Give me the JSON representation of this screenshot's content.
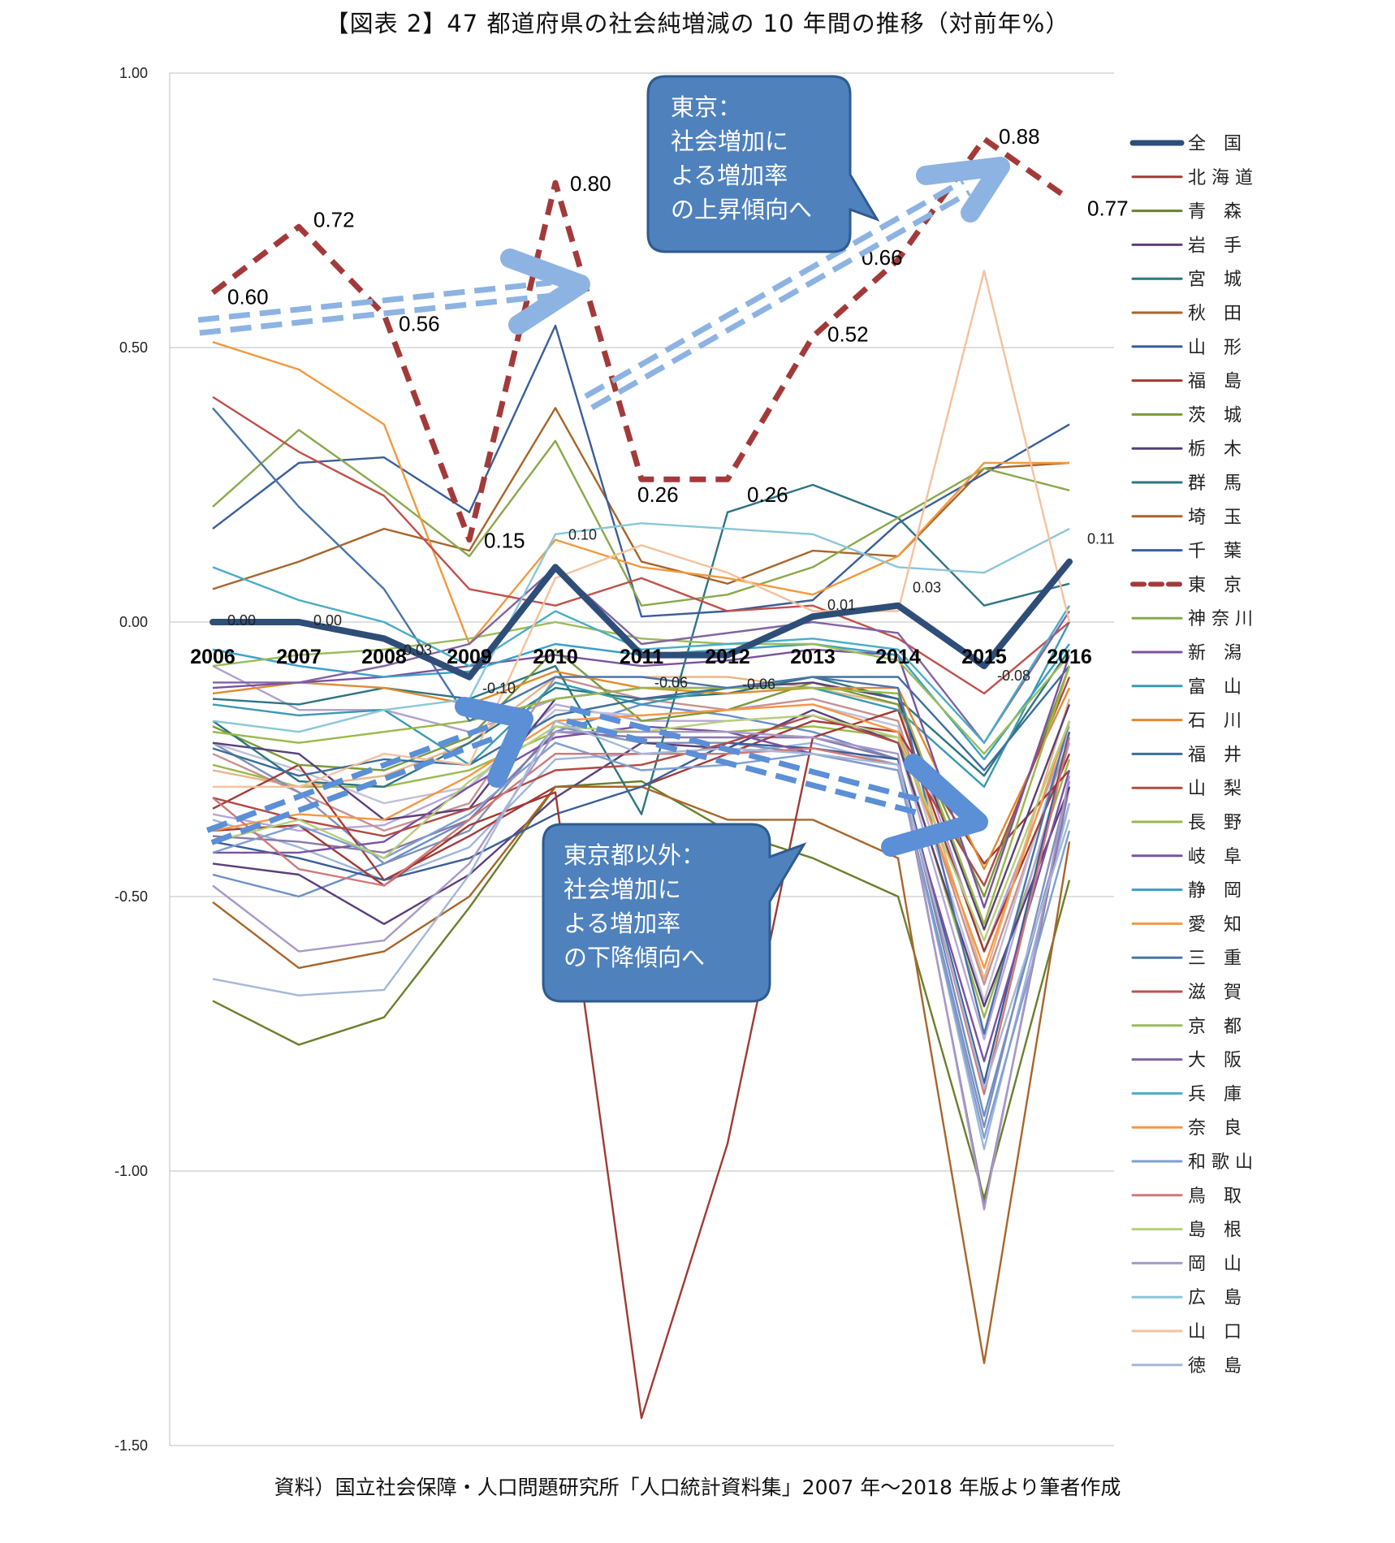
{
  "title": "【図表 2】47 都道府県の社会純増減の 10 年間の推移（対前年%）",
  "source": "資料）国立社会保障・人口問題研究所「人口統計資料集」2007 年～2018 年版より筆者作成",
  "callouts": {
    "tokyo": [
      "東京：",
      "社会増加に",
      "よる増加率",
      "の上昇傾向へ"
    ],
    "others": [
      "東京都以外：",
      "社会増加に",
      "よる増加率",
      "の下降傾向へ"
    ]
  },
  "colors": {
    "national": "#2e4e78",
    "tokyo": "#a33a3a",
    "callout_fill": "#4f81bd",
    "callout_stroke": "#2f5b8f",
    "arrow": "#8db3e2",
    "arrow_dark": "#5b8fd6"
  },
  "chart_data": {
    "type": "line",
    "title": "47 都道府県の社会純増減の 10 年間の推移（対前年%）",
    "categories": [
      "2006",
      "2007",
      "2008",
      "2009",
      "2010",
      "2011",
      "2012",
      "2013",
      "2014",
      "2015",
      "2016"
    ],
    "ylim": [
      -1.5,
      1.0
    ],
    "yticks": [
      "1.00",
      "0.50",
      "0.00",
      "-0.50",
      "-1.00",
      "-1.50"
    ],
    "ytick_values": [
      1.0,
      0.5,
      0.0,
      -0.5,
      -1.0,
      -1.5
    ],
    "gridlines": true,
    "legend_position": "right",
    "highlighted": {
      "national": {
        "name": "全　国",
        "values": [
          0.0,
          0.0,
          -0.03,
          -0.1,
          0.1,
          -0.06,
          -0.06,
          0.01,
          0.03,
          -0.08,
          0.11
        ],
        "labels": [
          "0.00",
          "0.00",
          "-0.03",
          "-0.10",
          "0.10",
          "-0.06",
          "-0.06",
          "0.01",
          "0.03",
          "-0.08",
          "0.11"
        ]
      },
      "tokyo": {
        "name": "東　京",
        "values": [
          0.6,
          0.72,
          0.56,
          0.15,
          0.8,
          0.26,
          0.26,
          0.52,
          0.66,
          0.88,
          0.77
        ],
        "labels": [
          "0.60",
          "0.72",
          "0.56",
          "0.15",
          "0.80",
          "0.26",
          "0.26",
          "0.52",
          "0.66",
          "0.88",
          "0.77"
        ]
      }
    },
    "series": [
      {
        "name": "北 海 道",
        "values": [
          -0.34,
          -0.26,
          -0.47,
          -0.39,
          -0.3,
          -0.3,
          -0.24,
          -0.18,
          -0.2,
          -0.44,
          -0.27
        ],
        "color": "#a33a3a"
      },
      {
        "name": "青　森",
        "values": [
          -0.69,
          -0.77,
          -0.72,
          -0.52,
          -0.3,
          -0.29,
          -0.38,
          -0.43,
          -0.5,
          -1.05,
          -0.47
        ],
        "color": "#6b7f2a"
      },
      {
        "name": "岩　手",
        "values": [
          -0.44,
          -0.46,
          -0.55,
          -0.46,
          -0.32,
          -0.22,
          -0.23,
          -0.16,
          -0.22,
          -0.7,
          -0.3
        ],
        "color": "#5a3f7a"
      },
      {
        "name": "宮　城",
        "values": [
          -0.14,
          -0.15,
          -0.12,
          -0.14,
          -0.08,
          -0.35,
          0.2,
          0.25,
          0.19,
          0.03,
          0.07
        ],
        "color": "#2d7582"
      },
      {
        "name": "秋　田",
        "values": [
          -0.51,
          -0.63,
          -0.6,
          -0.5,
          -0.3,
          -0.3,
          -0.36,
          -0.36,
          -0.43,
          -1.35,
          -0.4
        ],
        "color": "#a8652a"
      },
      {
        "name": "山　形",
        "values": [
          -0.4,
          -0.43,
          -0.47,
          -0.43,
          -0.35,
          -0.3,
          -0.22,
          -0.23,
          -0.25,
          -0.84,
          -0.2
        ],
        "color": "#3b5e98"
      },
      {
        "name": "福　島",
        "values": [
          -0.38,
          -0.37,
          -0.48,
          -0.37,
          -0.31,
          -1.45,
          -0.95,
          -0.21,
          -0.16,
          -0.6,
          -0.24
        ],
        "color": "#a03a32"
      },
      {
        "name": "茨　城",
        "values": [
          -0.19,
          -0.26,
          -0.27,
          -0.21,
          -0.05,
          -0.18,
          -0.16,
          -0.11,
          -0.15,
          -0.5,
          -0.08
        ],
        "color": "#7b9a3a"
      },
      {
        "name": "栃　木",
        "values": [
          -0.22,
          -0.24,
          -0.36,
          -0.34,
          -0.14,
          -0.12,
          -0.12,
          -0.11,
          -0.14,
          -0.56,
          -0.15
        ],
        "color": "#5a3f7a"
      },
      {
        "name": "群　馬",
        "values": [
          -0.18,
          -0.29,
          -0.3,
          -0.22,
          -0.12,
          -0.14,
          -0.13,
          -0.1,
          -0.14,
          -0.28,
          -0.05
        ],
        "color": "#2d7582"
      },
      {
        "name": "埼　玉",
        "values": [
          0.06,
          0.11,
          0.17,
          0.13,
          0.39,
          0.11,
          0.07,
          0.13,
          0.12,
          0.28,
          0.29
        ],
        "color": "#a8652a"
      },
      {
        "name": "千　葉",
        "values": [
          0.17,
          0.29,
          0.3,
          0.2,
          0.54,
          0.01,
          0.02,
          0.04,
          0.18,
          0.27,
          0.36
        ],
        "color": "#3b5e98"
      },
      {
        "name": "神 奈 川",
        "values": [
          0.21,
          0.35,
          0.24,
          0.12,
          0.33,
          0.03,
          0.05,
          0.1,
          0.19,
          0.28,
          0.24
        ],
        "color": "#8aa84a"
      },
      {
        "name": "新　潟",
        "values": [
          -0.42,
          -0.42,
          -0.4,
          -0.3,
          -0.21,
          -0.19,
          -0.2,
          -0.24,
          -0.27,
          -0.8,
          -0.27
        ],
        "color": "#7a52a0"
      },
      {
        "name": "富　山",
        "values": [
          -0.15,
          -0.17,
          -0.16,
          -0.26,
          -0.11,
          -0.15,
          -0.12,
          -0.12,
          -0.16,
          -0.3,
          0.0
        ],
        "color": "#3a9ab0"
      },
      {
        "name": "石　川",
        "values": [
          -0.13,
          -0.11,
          -0.12,
          -0.15,
          -0.09,
          -0.12,
          -0.13,
          -0.12,
          -0.12,
          -0.45,
          -0.12
        ],
        "color": "#e08a2e"
      },
      {
        "name": "福　井",
        "values": [
          -0.23,
          -0.28,
          -0.25,
          -0.26,
          -0.17,
          -0.14,
          -0.12,
          -0.1,
          -0.1,
          -0.27,
          -0.08
        ],
        "color": "#3b6e9a"
      },
      {
        "name": "山　梨",
        "values": [
          -0.32,
          -0.36,
          -0.39,
          -0.34,
          -0.27,
          -0.26,
          -0.22,
          -0.17,
          -0.22,
          -0.48,
          -0.1
        ],
        "color": "#b04a46"
      },
      {
        "name": "長　野",
        "values": [
          -0.2,
          -0.22,
          -0.2,
          -0.18,
          -0.14,
          -0.12,
          -0.12,
          -0.12,
          -0.13,
          -0.55,
          -0.08
        ],
        "color": "#9ab84a"
      },
      {
        "name": "岐　阜",
        "values": [
          -0.12,
          -0.11,
          -0.1,
          -0.08,
          -0.06,
          -0.08,
          -0.07,
          -0.05,
          -0.06,
          -0.52,
          -0.06
        ],
        "color": "#7a52a0"
      },
      {
        "name": "静　岡",
        "values": [
          -0.05,
          -0.08,
          -0.1,
          -0.09,
          -0.04,
          -0.06,
          -0.05,
          -0.04,
          -0.06,
          -0.25,
          -0.04
        ],
        "color": "#3aa0c8"
      },
      {
        "name": "愛　知",
        "values": [
          0.51,
          0.46,
          0.36,
          -0.04,
          0.15,
          0.1,
          0.08,
          0.05,
          0.12,
          0.29,
          0.29
        ],
        "color": "#f09a3e"
      },
      {
        "name": "三　重",
        "values": [
          0.39,
          0.21,
          0.06,
          -0.18,
          -0.1,
          -0.1,
          -0.12,
          -0.1,
          -0.12,
          -0.75,
          -0.18
        ],
        "color": "#4a74aa"
      },
      {
        "name": "滋　賀",
        "values": [
          0.41,
          0.31,
          0.23,
          0.06,
          0.03,
          0.08,
          0.02,
          0.03,
          -0.03,
          -0.13,
          0.0
        ],
        "color": "#c0504d"
      },
      {
        "name": "京　都",
        "values": [
          -0.08,
          -0.06,
          -0.05,
          -0.03,
          0.0,
          -0.03,
          -0.04,
          -0.04,
          -0.07,
          -0.24,
          -0.06
        ],
        "color": "#9bbb59"
      },
      {
        "name": "大　阪",
        "values": [
          -0.11,
          -0.11,
          -0.08,
          -0.04,
          0.1,
          -0.04,
          -0.02,
          0.0,
          -0.02,
          -0.22,
          0.02
        ],
        "color": "#8064a2"
      },
      {
        "name": "兵　庫",
        "values": [
          0.1,
          0.04,
          0.0,
          -0.08,
          0.02,
          -0.05,
          -0.04,
          -0.03,
          -0.05,
          -0.22,
          0.03
        ],
        "color": "#4bacc6"
      },
      {
        "name": "奈　良",
        "values": [
          -0.38,
          -0.35,
          -0.36,
          -0.28,
          -0.18,
          -0.17,
          -0.16,
          -0.15,
          -0.2,
          -0.63,
          -0.18
        ],
        "color": "#f79646"
      },
      {
        "name": "和 歌 山",
        "values": [
          -0.42,
          -0.37,
          -0.43,
          -0.35,
          -0.22,
          -0.27,
          -0.26,
          -0.24,
          -0.27,
          -0.94,
          -0.38
        ],
        "color": "#7f9fd0"
      },
      {
        "name": "鳥　取",
        "values": [
          -0.32,
          -0.45,
          -0.48,
          -0.36,
          -0.24,
          -0.24,
          -0.24,
          -0.23,
          -0.26,
          -0.86,
          -0.21
        ],
        "color": "#d07878"
      },
      {
        "name": "島　根",
        "values": [
          -0.4,
          -0.36,
          -0.43,
          -0.29,
          -0.19,
          -0.2,
          -0.18,
          -0.17,
          -0.21,
          -0.58,
          -0.18
        ],
        "color": "#b5d07a"
      },
      {
        "name": "岡　山",
        "values": [
          -0.48,
          -0.6,
          -0.58,
          -0.44,
          -0.2,
          -0.2,
          -0.2,
          -0.21,
          -0.24,
          -1.07,
          -0.28
        ],
        "color": "#a899c8"
      },
      {
        "name": "広　島",
        "values": [
          -0.18,
          -0.2,
          -0.16,
          -0.14,
          0.16,
          0.18,
          0.17,
          0.16,
          0.1,
          0.09,
          0.17
        ],
        "color": "#8ac6d8"
      },
      {
        "name": "山　口",
        "values": [
          -0.3,
          -0.3,
          -0.24,
          -0.26,
          0.08,
          0.14,
          0.09,
          0.02,
          0.02,
          0.64,
          0.0
        ],
        "color": "#f5c19c"
      },
      {
        "name": "徳　島",
        "values": [
          -0.65,
          -0.68,
          -0.67,
          -0.46,
          -0.18,
          -0.24,
          -0.23,
          -0.24,
          -0.26,
          -0.85,
          -0.36
        ],
        "color": "#a5b8d8"
      }
    ],
    "extra_series": [
      {
        "values": [
          -0.08,
          -0.16,
          -0.16,
          -0.2,
          -0.14,
          -0.12,
          -0.12,
          -0.12,
          -0.13,
          -0.6,
          -0.2
        ],
        "color": "#b0a0d0"
      },
      {
        "values": [
          -0.26,
          -0.3,
          -0.3,
          -0.27,
          -0.2,
          -0.2,
          -0.2,
          -0.19,
          -0.21,
          -0.72,
          -0.25
        ],
        "color": "#9ab84a"
      },
      {
        "values": [
          -0.46,
          -0.5,
          -0.44,
          -0.36,
          -0.2,
          -0.15,
          -0.17,
          -0.2,
          -0.25,
          -0.9,
          -0.33
        ],
        "color": "#6b8fc8"
      },
      {
        "values": [
          -0.35,
          -0.38,
          -0.37,
          -0.3,
          -0.15,
          -0.18,
          -0.18,
          -0.17,
          -0.22,
          -0.76,
          -0.22
        ],
        "color": "#b7a6d6"
      },
      {
        "values": [
          -0.27,
          -0.3,
          -0.28,
          -0.22,
          -0.1,
          -0.1,
          -0.1,
          -0.12,
          -0.15,
          -0.65,
          -0.14
        ],
        "color": "#e8b484"
      },
      {
        "values": [
          -0.36,
          -0.41,
          -0.47,
          -0.41,
          -0.25,
          -0.24,
          -0.24,
          -0.22,
          -0.26,
          -0.96,
          -0.33
        ],
        "color": "#9fb6d9"
      },
      {
        "values": [
          -0.24,
          -0.31,
          -0.38,
          -0.33,
          -0.1,
          -0.14,
          -0.16,
          -0.14,
          -0.18,
          -0.66,
          -0.21
        ],
        "color": "#c89090"
      },
      {
        "values": [
          -0.22,
          -0.31,
          -0.44,
          -0.38,
          -0.19,
          -0.22,
          -0.22,
          -0.24,
          -0.27,
          -0.92,
          -0.29
        ],
        "color": "#8090b8"
      },
      {
        "values": [
          -0.22,
          -0.27,
          -0.33,
          -0.3,
          -0.16,
          -0.17,
          -0.16,
          -0.15,
          -0.19,
          -0.69,
          -0.19
        ],
        "color": "#c0c0d8"
      },
      {
        "values": [
          -0.39,
          -0.4,
          -0.42,
          -0.36,
          -0.2,
          -0.21,
          -0.21,
          -0.21,
          -0.25,
          -1.06,
          -0.3
        ],
        "color": "#8878a8"
      }
    ]
  }
}
